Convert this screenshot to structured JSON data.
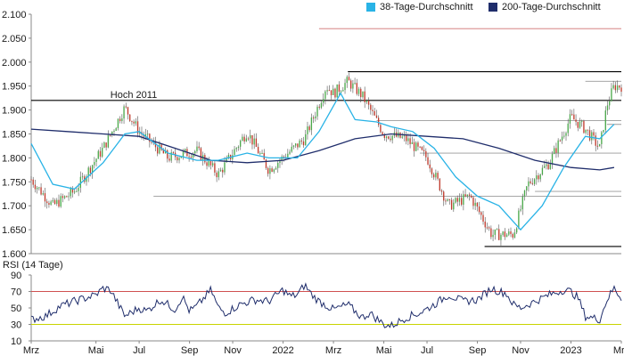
{
  "legend": {
    "ma38": {
      "label": "38-Tage-Durchschnitt",
      "color": "#29b3e6"
    },
    "ma200": {
      "label": "200-Tage-Durchschnitt",
      "color": "#1f2d6b"
    }
  },
  "chart_data": [
    {
      "type": "candlestick",
      "title": "",
      "yticks": [
        "2.100",
        "2.050",
        "2.000",
        "1.950",
        "1.900",
        "1.850",
        "1.800",
        "1.750",
        "1.700",
        "1.650",
        "1.600"
      ],
      "ylim": [
        1600,
        2100
      ],
      "annotation": "Hoch 2011",
      "price_anchors": [
        {
          "t": 0,
          "v": 1755
        },
        {
          "t": 3,
          "v": 1700
        },
        {
          "t": 6,
          "v": 1730
        },
        {
          "t": 10,
          "v": 1820
        },
        {
          "t": 13,
          "v": 1905
        },
        {
          "t": 15,
          "v": 1855
        },
        {
          "t": 19,
          "v": 1800
        },
        {
          "t": 23,
          "v": 1815
        },
        {
          "t": 26,
          "v": 1765
        },
        {
          "t": 30,
          "v": 1855
        },
        {
          "t": 33,
          "v": 1775
        },
        {
          "t": 38,
          "v": 1840
        },
        {
          "t": 41,
          "v": 1950
        },
        {
          "t": 42,
          "v": 1935
        },
        {
          "t": 44,
          "v": 1960
        },
        {
          "t": 46,
          "v": 1930
        },
        {
          "t": 49,
          "v": 1850
        },
        {
          "t": 52,
          "v": 1840
        },
        {
          "t": 55,
          "v": 1800
        },
        {
          "t": 58,
          "v": 1700
        },
        {
          "t": 61,
          "v": 1720
        },
        {
          "t": 64,
          "v": 1640
        },
        {
          "t": 67,
          "v": 1640
        },
        {
          "t": 69,
          "v": 1745
        },
        {
          "t": 72,
          "v": 1790
        },
        {
          "t": 75,
          "v": 1885
        },
        {
          "t": 77,
          "v": 1860
        },
        {
          "t": 79,
          "v": 1820
        },
        {
          "t": 80,
          "v": 1910
        },
        {
          "t": 81,
          "v": 1950
        }
      ],
      "ma38": [
        {
          "t": 0,
          "v": 1830
        },
        {
          "t": 3,
          "v": 1745
        },
        {
          "t": 6,
          "v": 1735
        },
        {
          "t": 10,
          "v": 1790
        },
        {
          "t": 13,
          "v": 1850
        },
        {
          "t": 15,
          "v": 1855
        },
        {
          "t": 19,
          "v": 1810
        },
        {
          "t": 23,
          "v": 1795
        },
        {
          "t": 26,
          "v": 1795
        },
        {
          "t": 30,
          "v": 1810
        },
        {
          "t": 33,
          "v": 1800
        },
        {
          "t": 37,
          "v": 1800
        },
        {
          "t": 40,
          "v": 1855
        },
        {
          "t": 43,
          "v": 1935
        },
        {
          "t": 45,
          "v": 1880
        },
        {
          "t": 48,
          "v": 1875
        },
        {
          "t": 50,
          "v": 1865
        },
        {
          "t": 53,
          "v": 1855
        },
        {
          "t": 56,
          "v": 1820
        },
        {
          "t": 59,
          "v": 1760
        },
        {
          "t": 62,
          "v": 1720
        },
        {
          "t": 65,
          "v": 1700
        },
        {
          "t": 68,
          "v": 1650
        },
        {
          "t": 71,
          "v": 1700
        },
        {
          "t": 74,
          "v": 1780
        },
        {
          "t": 77,
          "v": 1845
        },
        {
          "t": 79,
          "v": 1840
        },
        {
          "t": 81,
          "v": 1870
        }
      ],
      "ma200": [
        {
          "t": 0,
          "v": 1860
        },
        {
          "t": 5,
          "v": 1855
        },
        {
          "t": 10,
          "v": 1850
        },
        {
          "t": 15,
          "v": 1845
        },
        {
          "t": 20,
          "v": 1820
        },
        {
          "t": 25,
          "v": 1795
        },
        {
          "t": 30,
          "v": 1790
        },
        {
          "t": 35,
          "v": 1795
        },
        {
          "t": 40,
          "v": 1815
        },
        {
          "t": 45,
          "v": 1840
        },
        {
          "t": 50,
          "v": 1850
        },
        {
          "t": 55,
          "v": 1845
        },
        {
          "t": 60,
          "v": 1840
        },
        {
          "t": 65,
          "v": 1820
        },
        {
          "t": 70,
          "v": 1795
        },
        {
          "t": 75,
          "v": 1780
        },
        {
          "t": 79,
          "v": 1775
        },
        {
          "t": 81,
          "v": 1780
        }
      ],
      "support_resistance": [
        {
          "value": 2070,
          "t_from": 40,
          "t_to": 82,
          "color": "#d07070"
        },
        {
          "value": 1980,
          "t_from": 44,
          "t_to": 82,
          "color": "#000000"
        },
        {
          "value": 1960,
          "t_from": 77,
          "t_to": 82,
          "color": "#999999"
        },
        {
          "value": 1920,
          "t_from": 0,
          "t_to": 82,
          "color": "#000000"
        },
        {
          "value": 1878,
          "t_from": 48,
          "t_to": 82,
          "color": "#999999"
        },
        {
          "value": 1870,
          "t_from": 80,
          "t_to": 82,
          "color": "#999999"
        },
        {
          "value": 1810,
          "t_from": 54,
          "t_to": 82,
          "color": "#999999"
        },
        {
          "value": 1730,
          "t_from": 70,
          "t_to": 82,
          "color": "#999999"
        },
        {
          "value": 1720,
          "t_from": 17,
          "t_to": 82,
          "color": "#999999"
        },
        {
          "value": 1615,
          "t_from": 63,
          "t_to": 82,
          "color": "#000000"
        }
      ]
    },
    {
      "type": "line",
      "title": "RSI (14 Tage)",
      "yticks": [
        "90",
        "70",
        "50",
        "30",
        "10"
      ],
      "ylim": [
        10,
        90
      ],
      "overbought": 70,
      "oversold": 30,
      "overbought_color": "#d05050",
      "oversold_color": "#c8d400",
      "line_color": "#1f2d6b",
      "rsi": [
        {
          "t": 0,
          "v": 36
        },
        {
          "t": 2,
          "v": 40
        },
        {
          "t": 4,
          "v": 52
        },
        {
          "t": 6,
          "v": 58
        },
        {
          "t": 9,
          "v": 66
        },
        {
          "t": 10,
          "v": 74
        },
        {
          "t": 11,
          "v": 72
        },
        {
          "t": 12,
          "v": 56
        },
        {
          "t": 13,
          "v": 40
        },
        {
          "t": 15,
          "v": 50
        },
        {
          "t": 16,
          "v": 46
        },
        {
          "t": 18,
          "v": 60
        },
        {
          "t": 20,
          "v": 48
        },
        {
          "t": 21,
          "v": 64
        },
        {
          "t": 22,
          "v": 46
        },
        {
          "t": 23,
          "v": 52
        },
        {
          "t": 25,
          "v": 72
        },
        {
          "t": 26,
          "v": 50
        },
        {
          "t": 27,
          "v": 44
        },
        {
          "t": 29,
          "v": 54
        },
        {
          "t": 31,
          "v": 60
        },
        {
          "t": 33,
          "v": 58
        },
        {
          "t": 35,
          "v": 72
        },
        {
          "t": 36,
          "v": 64
        },
        {
          "t": 37,
          "v": 66
        },
        {
          "t": 38,
          "v": 78
        },
        {
          "t": 39,
          "v": 66
        },
        {
          "t": 40,
          "v": 58
        },
        {
          "t": 42,
          "v": 48
        },
        {
          "t": 44,
          "v": 54
        },
        {
          "t": 46,
          "v": 38
        },
        {
          "t": 47,
          "v": 44
        },
        {
          "t": 49,
          "v": 30
        },
        {
          "t": 50,
          "v": 28
        },
        {
          "t": 52,
          "v": 38
        },
        {
          "t": 54,
          "v": 44
        },
        {
          "t": 56,
          "v": 54
        },
        {
          "t": 58,
          "v": 66
        },
        {
          "t": 60,
          "v": 58
        },
        {
          "t": 62,
          "v": 60
        },
        {
          "t": 64,
          "v": 74
        },
        {
          "t": 65,
          "v": 70
        },
        {
          "t": 66,
          "v": 68
        },
        {
          "t": 67,
          "v": 54
        },
        {
          "t": 68,
          "v": 50
        },
        {
          "t": 70,
          "v": 58
        },
        {
          "t": 72,
          "v": 66
        },
        {
          "t": 74,
          "v": 72
        },
        {
          "t": 75,
          "v": 70
        },
        {
          "t": 76,
          "v": 62
        },
        {
          "t": 77,
          "v": 40
        },
        {
          "t": 78,
          "v": 38
        },
        {
          "t": 79,
          "v": 36
        },
        {
          "t": 80,
          "v": 60
        },
        {
          "t": 81,
          "v": 74
        },
        {
          "t": 82,
          "v": 62
        }
      ]
    }
  ],
  "xaxis": {
    "labels": [
      {
        "t": 0,
        "label": "Mrz"
      },
      {
        "t": 9,
        "label": "Mai"
      },
      {
        "t": 15,
        "label": "Jul"
      },
      {
        "t": 22,
        "label": "Sep"
      },
      {
        "t": 28,
        "label": "Nov"
      },
      {
        "t": 35,
        "label": "2022"
      },
      {
        "t": 42,
        "label": "Mrz"
      },
      {
        "t": 49,
        "label": "Mai"
      },
      {
        "t": 55,
        "label": "Jul"
      },
      {
        "t": 62,
        "label": "Sep"
      },
      {
        "t": 68,
        "label": "Nov"
      },
      {
        "t": 75,
        "label": "2023"
      },
      {
        "t": 82,
        "label": "Mrz"
      }
    ],
    "t_range": [
      0,
      82
    ]
  }
}
